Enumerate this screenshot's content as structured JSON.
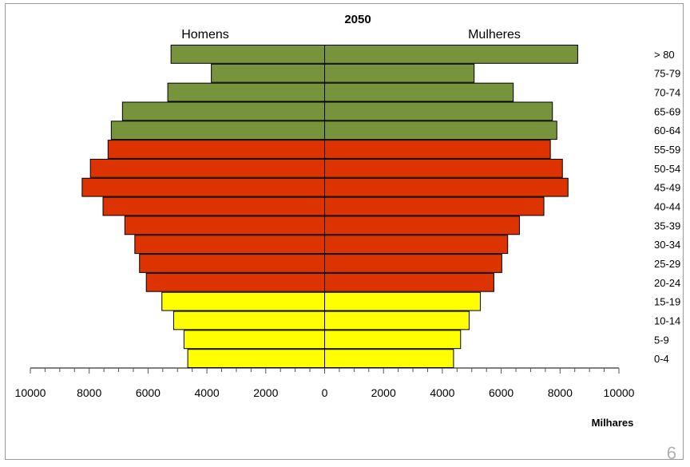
{
  "chart_data": {
    "type": "bar",
    "orientation": "horizontal",
    "layout": "population-pyramid",
    "title": "2050",
    "left_label": "Homens",
    "right_label": "Mulheres",
    "xlabel": "Milhares",
    "xlim": [
      -10000,
      10000
    ],
    "x_ticks": [
      -10000,
      -8000,
      -6000,
      -4000,
      -2000,
      0,
      2000,
      4000,
      6000,
      8000,
      10000
    ],
    "x_tick_labels": [
      "10000",
      "8000",
      "6000",
      "4000",
      "2000",
      "0",
      "2000",
      "4000",
      "6000",
      "8000",
      "10000"
    ],
    "grid": false,
    "categories": [
      "0-4",
      "5-9",
      "10-14",
      "15-19",
      "20-24",
      "25-29",
      "30-34",
      "35-39",
      "40-44",
      "45-49",
      "50-54",
      "55-59",
      "60-64",
      "65-69",
      "70-74",
      "75-79",
      "> 80"
    ],
    "series": [
      {
        "name": "Homens",
        "side": "left",
        "values": [
          4650,
          4780,
          5130,
          5530,
          6060,
          6290,
          6450,
          6790,
          7530,
          8240,
          7960,
          7360,
          7250,
          6870,
          5330,
          3850,
          5220
        ]
      },
      {
        "name": "Mulheres",
        "side": "right",
        "values": [
          4380,
          4620,
          4910,
          5290,
          5750,
          6020,
          6220,
          6620,
          7450,
          8270,
          8080,
          7670,
          7890,
          7740,
          6410,
          5080,
          8600
        ]
      }
    ],
    "category_colors": [
      "#ffff00",
      "#ffff00",
      "#ffff00",
      "#ffff00",
      "#dd3300",
      "#dd3300",
      "#dd3300",
      "#dd3300",
      "#dd3300",
      "#dd3300",
      "#dd3300",
      "#dd3300",
      "#77933c",
      "#77933c",
      "#77933c",
      "#77933c",
      "#77933c"
    ],
    "bar_stroke": "#000000"
  },
  "page_number": "6"
}
